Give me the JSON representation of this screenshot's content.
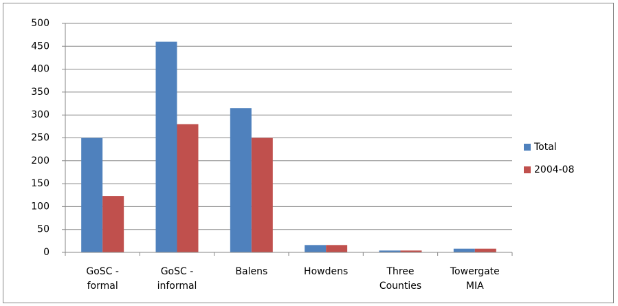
{
  "chart_data": {
    "type": "bar",
    "categories": [
      "GoSC - formal",
      "GoSC - informal",
      "Balens",
      "Howdens",
      "Three Counties",
      "Towergate MIA"
    ],
    "series": [
      {
        "name": "Total",
        "color": "#4f81bd",
        "values": [
          250,
          460,
          315,
          16,
          4,
          8
        ]
      },
      {
        "name": "2004-08",
        "color": "#c0504d",
        "values": [
          123,
          280,
          250,
          16,
          4,
          8
        ]
      }
    ],
    "ylim": [
      0,
      500
    ],
    "yticks": [
      0,
      50,
      100,
      150,
      200,
      250,
      300,
      350,
      400,
      450,
      500
    ],
    "grid": true,
    "legend": "right"
  }
}
